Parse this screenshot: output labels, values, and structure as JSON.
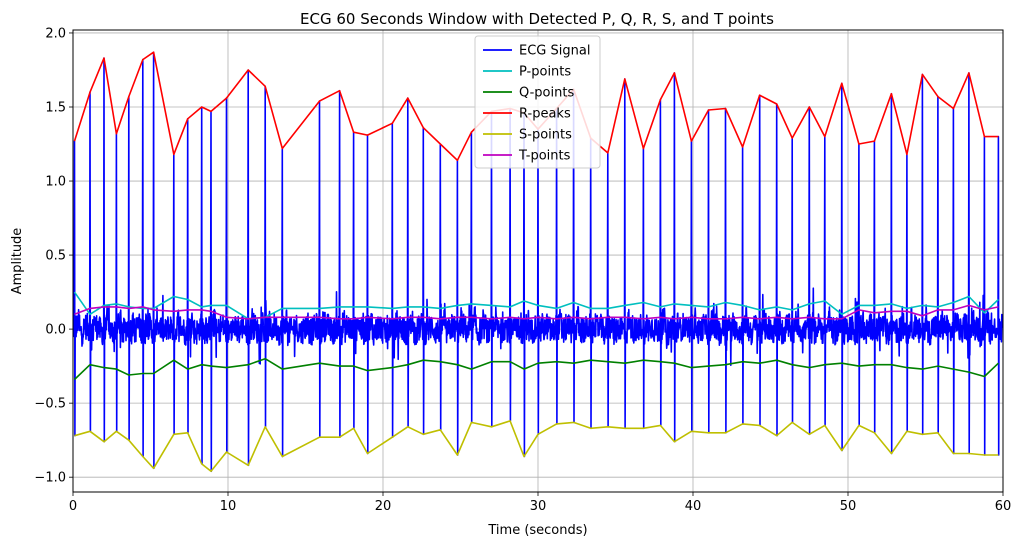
{
  "chart_data": {
    "type": "line",
    "title": "ECG 60 Seconds Window with Detected P, Q, R, S, and T points",
    "xlabel": "Time (seconds)",
    "ylabel": "Amplitude",
    "xlim": [
      0,
      60
    ],
    "ylim": [
      -1.1,
      2.02
    ],
    "xticks": [
      0,
      10,
      20,
      30,
      40,
      50,
      60
    ],
    "yticks": [
      -1.0,
      -0.5,
      0.0,
      0.5,
      1.0,
      1.5,
      2.0
    ],
    "xtick_labels": [
      "0",
      "10",
      "20",
      "30",
      "40",
      "50",
      "60"
    ],
    "ytick_labels": [
      "−1.0",
      "−0.5",
      "0.0",
      "0.5",
      "1.0",
      "1.5",
      "2.0"
    ],
    "grid": true,
    "legend_position": "top-center",
    "beat_times": [
      0.1,
      1.1,
      2.0,
      2.8,
      3.6,
      4.5,
      5.2,
      6.5,
      7.4,
      8.3,
      8.9,
      9.9,
      11.3,
      12.4,
      13.5,
      15.9,
      17.2,
      18.1,
      19.0,
      20.6,
      21.6,
      22.6,
      23.7,
      24.8,
      25.7,
      27.0,
      28.2,
      29.1,
      30.0,
      31.2,
      32.3,
      33.4,
      34.5,
      35.6,
      36.8,
      37.9,
      38.8,
      39.9,
      41.0,
      42.1,
      43.2,
      44.3,
      45.4,
      46.4,
      47.5,
      48.5,
      49.6,
      50.7,
      51.7,
      52.8,
      53.8,
      54.8,
      55.8,
      56.8,
      57.8,
      58.8,
      59.7
    ],
    "series": [
      {
        "name": "ECG Signal",
        "color": "#0000ff",
        "kind": "signal"
      },
      {
        "name": "P-points",
        "color": "#00bfbf",
        "values": [
          0.25,
          0.1,
          0.16,
          0.17,
          0.15,
          0.14,
          0.14,
          0.22,
          0.2,
          0.15,
          0.16,
          0.16,
          0.07,
          0.08,
          0.14,
          0.14,
          0.15,
          0.15,
          0.15,
          0.14,
          0.15,
          0.15,
          0.14,
          0.16,
          0.17,
          0.16,
          0.15,
          0.19,
          0.16,
          0.14,
          0.18,
          0.14,
          0.14,
          0.16,
          0.18,
          0.15,
          0.17,
          0.16,
          0.15,
          0.18,
          0.16,
          0.13,
          0.15,
          0.13,
          0.17,
          0.19,
          0.1,
          0.16,
          0.16,
          0.17,
          0.14,
          0.16,
          0.15,
          0.18,
          0.22,
          0.11,
          0.2
        ]
      },
      {
        "name": "Q-points",
        "color": "#008000",
        "values": [
          -0.34,
          -0.24,
          -0.26,
          -0.27,
          -0.31,
          -0.3,
          -0.3,
          -0.21,
          -0.27,
          -0.24,
          -0.25,
          -0.26,
          -0.24,
          -0.2,
          -0.27,
          -0.23,
          -0.25,
          -0.25,
          -0.28,
          -0.26,
          -0.24,
          -0.21,
          -0.22,
          -0.24,
          -0.27,
          -0.22,
          -0.22,
          -0.27,
          -0.23,
          -0.22,
          -0.23,
          -0.21,
          -0.22,
          -0.23,
          -0.21,
          -0.22,
          -0.23,
          -0.26,
          -0.25,
          -0.24,
          -0.22,
          -0.23,
          -0.21,
          -0.24,
          -0.26,
          -0.24,
          -0.23,
          -0.25,
          -0.24,
          -0.24,
          -0.26,
          -0.27,
          -0.25,
          -0.27,
          -0.29,
          -0.32,
          -0.23
        ]
      },
      {
        "name": "R-peaks",
        "color": "#ff0000",
        "values": [
          1.27,
          1.6,
          1.83,
          1.32,
          1.57,
          1.82,
          1.87,
          1.18,
          1.42,
          1.5,
          1.47,
          1.56,
          1.75,
          1.64,
          1.22,
          1.54,
          1.61,
          1.33,
          1.31,
          1.39,
          1.56,
          1.36,
          1.25,
          1.14,
          1.33,
          1.47,
          1.49,
          1.46,
          1.35,
          1.49,
          1.62,
          1.29,
          1.19,
          1.69,
          1.22,
          1.55,
          1.73,
          1.27,
          1.48,
          1.49,
          1.23,
          1.58,
          1.52,
          1.29,
          1.5,
          1.3,
          1.66,
          1.25,
          1.27,
          1.59,
          1.18,
          1.72,
          1.57,
          1.49,
          1.73,
          1.3,
          1.3
        ]
      },
      {
        "name": "S-points",
        "color": "#bfbf00",
        "values": [
          -0.72,
          -0.69,
          -0.76,
          -0.69,
          -0.75,
          -0.86,
          -0.94,
          -0.71,
          -0.7,
          -0.91,
          -0.96,
          -0.83,
          -0.92,
          -0.66,
          -0.86,
          -0.73,
          -0.73,
          -0.67,
          -0.84,
          -0.73,
          -0.66,
          -0.71,
          -0.68,
          -0.85,
          -0.63,
          -0.66,
          -0.62,
          -0.86,
          -0.71,
          -0.64,
          -0.63,
          -0.67,
          -0.66,
          -0.67,
          -0.67,
          -0.65,
          -0.76,
          -0.69,
          -0.7,
          -0.7,
          -0.64,
          -0.65,
          -0.72,
          -0.63,
          -0.71,
          -0.65,
          -0.82,
          -0.65,
          -0.7,
          -0.84,
          -0.69,
          -0.71,
          -0.7,
          -0.84,
          -0.84,
          -0.85,
          -0.85
        ]
      },
      {
        "name": "T-points",
        "color": "#bf00bf",
        "values": [
          0.1,
          0.14,
          0.15,
          0.15,
          0.14,
          0.15,
          0.13,
          0.12,
          0.13,
          0.13,
          0.12,
          0.08,
          0.07,
          0.08,
          0.08,
          0.08,
          0.07,
          0.07,
          0.08,
          0.07,
          0.08,
          0.08,
          0.07,
          0.08,
          0.08,
          0.07,
          0.08,
          0.07,
          0.08,
          0.07,
          0.08,
          0.07,
          0.08,
          0.08,
          0.07,
          0.08,
          0.07,
          0.08,
          0.07,
          0.07,
          0.08,
          0.07,
          0.08,
          0.07,
          0.08,
          0.07,
          0.07,
          0.13,
          0.11,
          0.12,
          0.12,
          0.09,
          0.13,
          0.13,
          0.16,
          0.13,
          0.15
        ]
      }
    ]
  }
}
